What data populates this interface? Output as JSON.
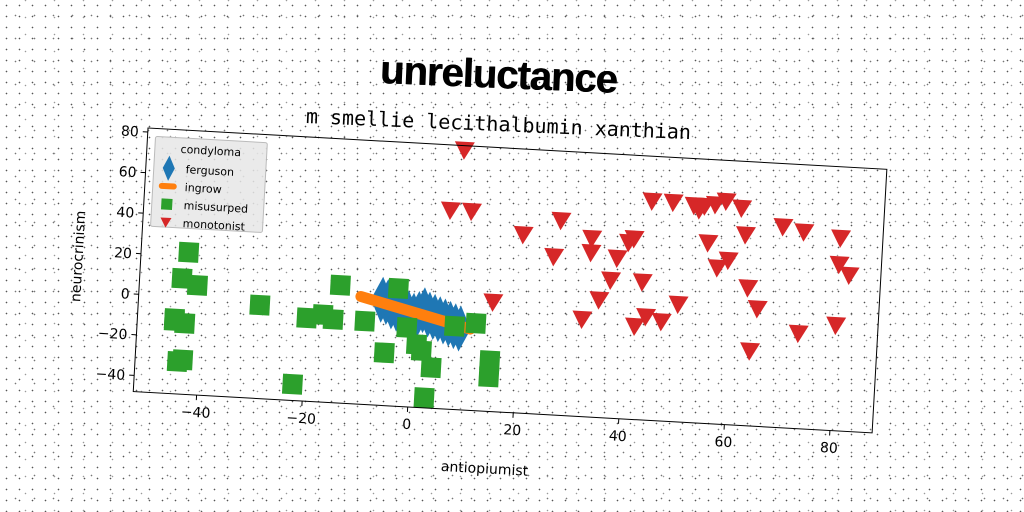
{
  "chart_data": {
    "type": "scatter",
    "title": "unreluctance",
    "subtitle": "m smellie lecithalbumin xanthian",
    "xlabel": "antiopiumist",
    "ylabel": "neurocrinism",
    "xlim": [
      -52,
      88
    ],
    "ylim": [
      -48,
      82
    ],
    "xticks": [
      -40,
      -20,
      0,
      20,
      40,
      60,
      80
    ],
    "yticks": [
      -40,
      -20,
      0,
      20,
      40,
      60,
      80
    ],
    "grid": false,
    "legend": {
      "title": "condyloma",
      "placement": "top-left"
    },
    "series": [
      {
        "name": "ferguson",
        "marker": "thin_diamond",
        "color": "#1f77b4",
        "x": [
          -6,
          -5,
          -4,
          -3,
          -2,
          -1,
          0,
          1,
          2,
          3,
          4,
          5,
          6,
          7,
          8,
          9
        ],
        "y": [
          4,
          3,
          1,
          0,
          -1,
          -2,
          -3,
          -2,
          0,
          -2,
          -3,
          -4,
          -5,
          -6,
          -7,
          -8
        ]
      },
      {
        "name": "ingrow",
        "marker": "line",
        "color": "#ff7f0e",
        "x": [
          -10,
          11
        ],
        "y": [
          5,
          -8
        ]
      },
      {
        "name": "misusurped",
        "marker": "square",
        "color": "#2ca02c",
        "x": [
          -43,
          -44,
          -45,
          -43,
          -41,
          -45,
          -43,
          -44,
          -29,
          -22,
          -20,
          -17,
          -15,
          -14,
          -9,
          -5,
          -3,
          -1,
          1,
          2,
          4,
          3,
          8,
          12,
          15,
          15
        ],
        "y": [
          22,
          9,
          -12,
          -13,
          6,
          -11,
          -31,
          -32,
          -2,
          -40,
          -7,
          -5,
          -7,
          10,
          -7,
          -22,
          10,
          -9,
          -17,
          -20,
          -28,
          -43,
          -7,
          -5,
          -23,
          -31
        ]
      },
      {
        "name": "monotonist",
        "marker": "triangle_down",
        "color": "#d62728",
        "x": [
          8,
          6,
          10,
          15,
          20,
          26,
          27,
          32,
          33,
          33,
          35,
          37,
          38,
          40,
          41,
          42,
          43,
          44,
          44,
          47,
          48,
          50,
          52,
          53,
          54,
          55,
          56,
          57,
          58,
          59,
          61,
          62,
          63,
          64,
          65,
          69,
          73,
          73,
          80,
          80,
          80,
          82
        ],
        "y": [
          80,
          50,
          50,
          6,
          40,
          30,
          48,
          0,
          40,
          33,
          10,
          20,
          31,
          39,
          41,
          -2,
          20,
          60,
          3,
          1,
          60,
          10,
          59,
          57,
          59,
          41,
          60,
          29,
          62,
          33,
          59,
          46,
          20,
          -11,
          10,
          51,
          49,
          -1,
          47,
          34,
          4,
          29
        ]
      }
    ]
  }
}
